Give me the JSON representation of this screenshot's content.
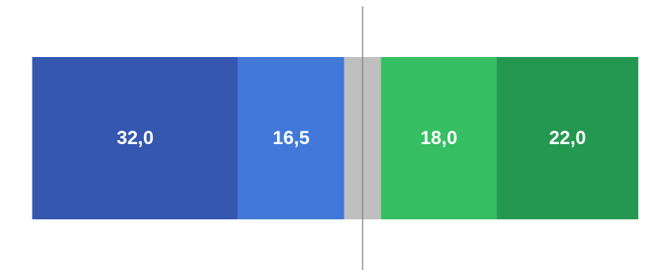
{
  "chart_data": {
    "type": "bar",
    "orientation": "horizontal",
    "stacked": true,
    "grid": false,
    "legend": "none",
    "title": "",
    "xlabel": "",
    "ylabel": "",
    "xlim": [
      -55,
      47
    ],
    "center_line_value": 0,
    "segments": [
      {
        "value": 32.0,
        "label": "32,0",
        "side": "negative",
        "color": "#3557b0"
      },
      {
        "value": 16.5,
        "label": "16,5",
        "side": "negative",
        "color": "#4279d8"
      },
      {
        "value": 5.7,
        "label": "",
        "side": "neutral",
        "color": "#bfbfbf"
      },
      {
        "value": 18.0,
        "label": "18,0",
        "side": "positive",
        "color": "#35bf62"
      },
      {
        "value": 22.0,
        "label": "22,0",
        "side": "positive",
        "color": "#249850"
      }
    ]
  }
}
